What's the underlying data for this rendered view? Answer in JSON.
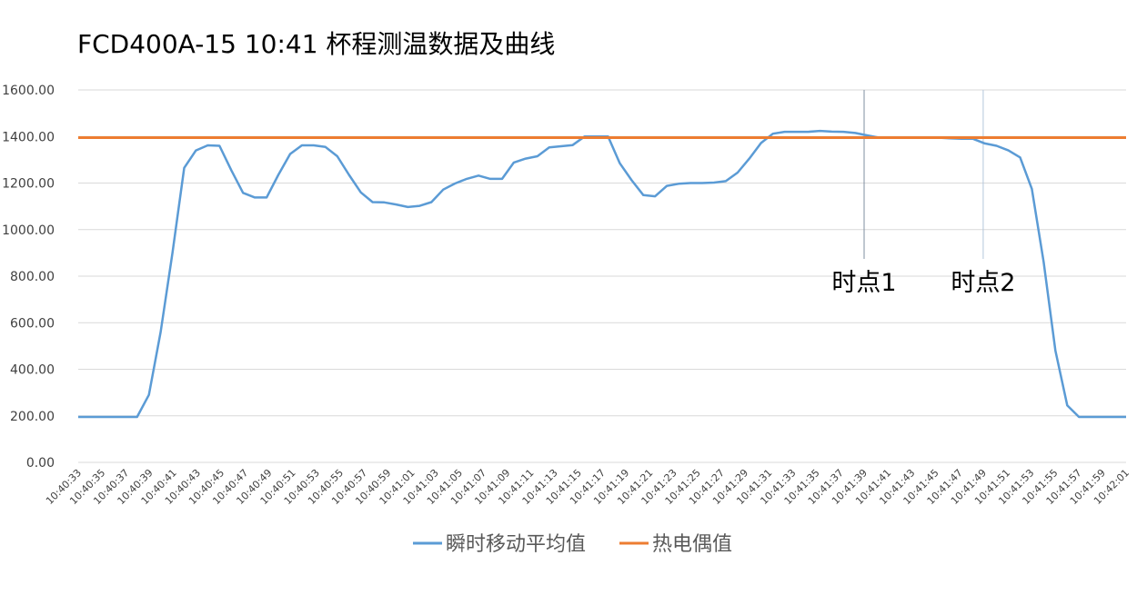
{
  "chart_data": {
    "type": "line",
    "title": "FCD400A-15    10:41  杯程测温数据及曲线",
    "ylim": [
      0,
      1600
    ],
    "yticks": [
      "0.00",
      "200.00",
      "400.00",
      "600.00",
      "800.00",
      "1000.00",
      "1200.00",
      "1400.00",
      "1600.00"
    ],
    "grid": true,
    "legend_position": "bottom",
    "x_labels": [
      "10:40:33",
      "10:40:35",
      "10:40:37",
      "10:40:39",
      "10:40:41",
      "10:40:43",
      "10:40:45",
      "10:40:47",
      "10:40:49",
      "10:40:51",
      "10:40:53",
      "10:40:55",
      "10:40:57",
      "10:40:59",
      "10:41:01",
      "10:41:03",
      "10:41:05",
      "10:41:07",
      "10:41:09",
      "10:41:11",
      "10:41:13",
      "10:41:15",
      "10:41:17",
      "10:41:19",
      "10:41:21",
      "10:41:23",
      "10:41:25",
      "10:41:27",
      "10:41:29",
      "10:41:31",
      "10:41:33",
      "10:41:35",
      "10:41:37",
      "10:41:39",
      "10:41:41",
      "10:41:43",
      "10:41:45",
      "10:41:47",
      "10:41:49",
      "10:41:51",
      "10:41:53",
      "10:41:55",
      "10:41:57",
      "10:41:59",
      "10:42:01"
    ],
    "series": [
      {
        "name": "瞬时移动平均值",
        "color": "#5b9bd5",
        "values": [
          195,
          195,
          195,
          195,
          195,
          195,
          290,
          560,
          900,
          1265,
          1340,
          1362,
          1360,
          1255,
          1158,
          1138,
          1138,
          1235,
          1325,
          1362,
          1362,
          1355,
          1315,
          1235,
          1160,
          1118,
          1117,
          1108,
          1097,
          1102,
          1118,
          1172,
          1198,
          1218,
          1232,
          1218,
          1218,
          1288,
          1305,
          1315,
          1353,
          1358,
          1363,
          1400,
          1400,
          1400,
          1285,
          1212,
          1148,
          1143,
          1188,
          1197,
          1200,
          1200,
          1202,
          1208,
          1245,
          1305,
          1372,
          1412,
          1420,
          1420,
          1420,
          1424,
          1421,
          1420,
          1415,
          1405,
          1395,
          1395,
          1395,
          1395,
          1395,
          1395,
          1392,
          1390,
          1390,
          1370,
          1360,
          1340,
          1310,
          1175,
          860,
          480,
          245,
          195,
          195,
          195,
          195,
          195
        ]
      },
      {
        "name": "热电偶值",
        "color": "#ed7d31",
        "values": [
          1395,
          1395
        ]
      }
    ],
    "annotations": [
      {
        "label": "时点1",
        "x": "10:41:39"
      },
      {
        "label": "时点2",
        "x": "10:41:49"
      }
    ]
  }
}
